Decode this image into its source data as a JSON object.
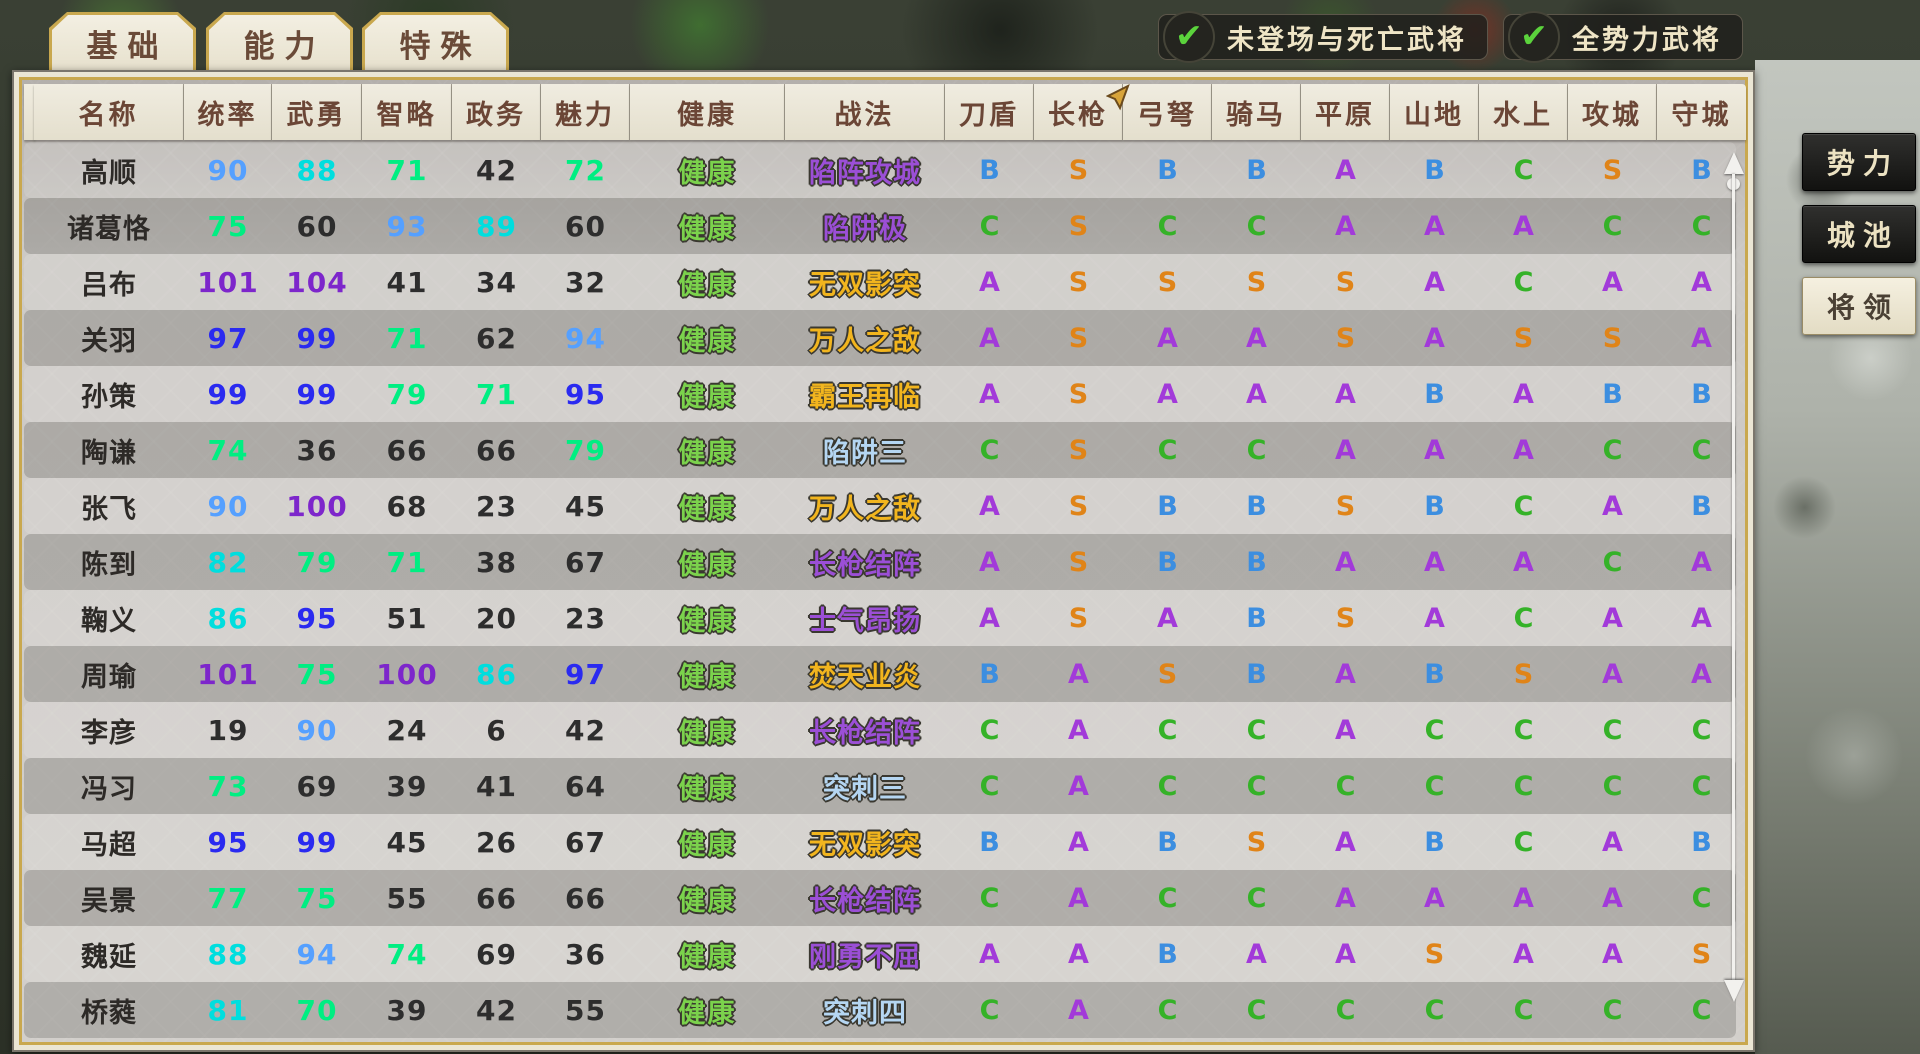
{
  "tabs": [
    {
      "label": "基础",
      "active": false
    },
    {
      "label": "能力",
      "active": true
    },
    {
      "label": "特殊",
      "active": false
    }
  ],
  "filters": [
    {
      "label": "未登场与死亡武将",
      "checked": true,
      "check_glyph": "✔"
    },
    {
      "label": "全势力武将",
      "checked": true,
      "check_glyph": "✔"
    }
  ],
  "side_buttons": [
    {
      "label": "势力",
      "active": false
    },
    {
      "label": "城池",
      "active": false
    },
    {
      "label": "将领",
      "active": true
    }
  ],
  "colors": {
    "grade": {
      "S": "#e08418",
      "A": "#a23ad9",
      "B": "#3c8ee0",
      "C": "#35b228"
    },
    "stat_tiers": {
      "t100": "#7d26cb",
      "t95": "#2a2af0",
      "t90": "#55a0ff",
      "t80": "#00dede",
      "t70": "#00ee82",
      "low": "#2d2d2d"
    },
    "tactic": {
      "gold": "#f2b51e",
      "purple": "#9b4fd6",
      "blue": "#b5d6f2"
    },
    "health": "#7bd24c"
  },
  "table": {
    "columns": [
      "名称",
      "统率",
      "武勇",
      "智略",
      "政务",
      "魅力",
      "健康",
      "战法",
      "刀盾",
      "长枪",
      "弓弩",
      "骑马",
      "平原",
      "山地",
      "水上",
      "攻城",
      "守城"
    ],
    "rows": [
      {
        "name": "高顺",
        "stats": [
          90,
          88,
          71,
          42,
          72
        ],
        "health": "健康",
        "tactic": {
          "text": "陷阵攻城",
          "color": "purple"
        },
        "grades": [
          "B",
          "S",
          "B",
          "B",
          "A",
          "B",
          "C",
          "S",
          "B"
        ]
      },
      {
        "name": "诸葛恪",
        "stats": [
          75,
          60,
          93,
          89,
          60
        ],
        "health": "健康",
        "tactic": {
          "text": "陷阱极",
          "color": "purple"
        },
        "grades": [
          "C",
          "S",
          "C",
          "C",
          "A",
          "A",
          "A",
          "C",
          "C"
        ]
      },
      {
        "name": "吕布",
        "stats": [
          101,
          104,
          41,
          34,
          32
        ],
        "health": "健康",
        "tactic": {
          "text": "无双影突",
          "color": "gold"
        },
        "grades": [
          "A",
          "S",
          "S",
          "S",
          "S",
          "A",
          "C",
          "A",
          "A"
        ]
      },
      {
        "name": "关羽",
        "stats": [
          97,
          99,
          71,
          62,
          94
        ],
        "health": "健康",
        "tactic": {
          "text": "万人之敌",
          "color": "gold"
        },
        "grades": [
          "A",
          "S",
          "A",
          "A",
          "S",
          "A",
          "S",
          "S",
          "A"
        ]
      },
      {
        "name": "孙策",
        "stats": [
          99,
          99,
          79,
          71,
          95
        ],
        "health": "健康",
        "tactic": {
          "text": "霸王再临",
          "color": "gold"
        },
        "grades": [
          "A",
          "S",
          "A",
          "A",
          "A",
          "B",
          "A",
          "B",
          "B"
        ]
      },
      {
        "name": "陶谦",
        "stats": [
          74,
          36,
          66,
          66,
          79
        ],
        "health": "健康",
        "tactic": {
          "text": "陷阱三",
          "color": "blue"
        },
        "grades": [
          "C",
          "S",
          "C",
          "C",
          "A",
          "A",
          "A",
          "C",
          "C"
        ]
      },
      {
        "name": "张飞",
        "stats": [
          90,
          100,
          68,
          23,
          45
        ],
        "health": "健康",
        "tactic": {
          "text": "万人之敌",
          "color": "gold"
        },
        "grades": [
          "A",
          "S",
          "B",
          "B",
          "S",
          "B",
          "C",
          "A",
          "B"
        ]
      },
      {
        "name": "陈到",
        "stats": [
          82,
          79,
          71,
          38,
          67
        ],
        "health": "健康",
        "tactic": {
          "text": "长枪结阵",
          "color": "purple"
        },
        "grades": [
          "A",
          "S",
          "B",
          "B",
          "A",
          "A",
          "A",
          "C",
          "A"
        ]
      },
      {
        "name": "鞠义",
        "stats": [
          86,
          95,
          51,
          20,
          23
        ],
        "health": "健康",
        "tactic": {
          "text": "士气昂扬",
          "color": "purple"
        },
        "grades": [
          "A",
          "S",
          "A",
          "B",
          "S",
          "A",
          "C",
          "A",
          "A"
        ]
      },
      {
        "name": "周瑜",
        "stats": [
          101,
          75,
          100,
          86,
          97
        ],
        "health": "健康",
        "tactic": {
          "text": "焚天业炎",
          "color": "gold"
        },
        "grades": [
          "B",
          "A",
          "S",
          "B",
          "A",
          "B",
          "S",
          "A",
          "A"
        ]
      },
      {
        "name": "李彦",
        "stats": [
          19,
          90,
          24,
          6,
          42
        ],
        "health": "健康",
        "tactic": {
          "text": "长枪结阵",
          "color": "purple"
        },
        "grades": [
          "C",
          "A",
          "C",
          "C",
          "A",
          "C",
          "C",
          "C",
          "C"
        ]
      },
      {
        "name": "冯习",
        "stats": [
          73,
          69,
          39,
          41,
          64
        ],
        "health": "健康",
        "tactic": {
          "text": "突刺三",
          "color": "blue"
        },
        "grades": [
          "C",
          "A",
          "C",
          "C",
          "C",
          "C",
          "C",
          "C",
          "C"
        ]
      },
      {
        "name": "马超",
        "stats": [
          95,
          99,
          45,
          26,
          67
        ],
        "health": "健康",
        "tactic": {
          "text": "无双影突",
          "color": "gold"
        },
        "grades": [
          "B",
          "A",
          "B",
          "S",
          "A",
          "B",
          "C",
          "A",
          "B"
        ]
      },
      {
        "name": "吴景",
        "stats": [
          77,
          75,
          55,
          66,
          66
        ],
        "health": "健康",
        "tactic": {
          "text": "长枪结阵",
          "color": "purple"
        },
        "grades": [
          "C",
          "A",
          "C",
          "C",
          "A",
          "A",
          "A",
          "A",
          "C"
        ]
      },
      {
        "name": "魏延",
        "stats": [
          88,
          94,
          74,
          69,
          36
        ],
        "health": "健康",
        "tactic": {
          "text": "刚勇不屈",
          "color": "purple"
        },
        "grades": [
          "A",
          "A",
          "B",
          "A",
          "A",
          "S",
          "A",
          "A",
          "S"
        ]
      },
      {
        "name": "桥蕤",
        "stats": [
          81,
          70,
          39,
          42,
          55
        ],
        "health": "健康",
        "tactic": {
          "text": "突刺四",
          "color": "blue"
        },
        "grades": [
          "C",
          "A",
          "C",
          "C",
          "C",
          "C",
          "C",
          "C",
          "C"
        ]
      }
    ]
  }
}
